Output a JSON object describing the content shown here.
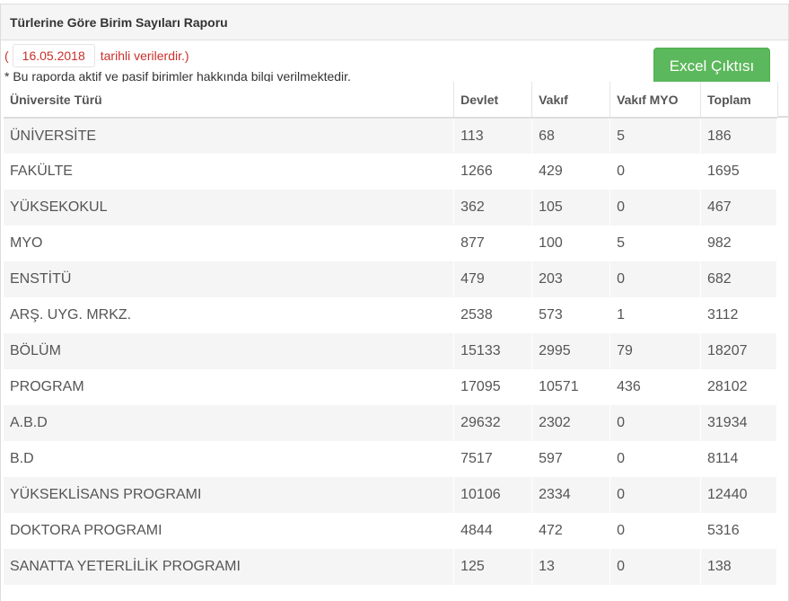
{
  "panel": {
    "title": "Türlerine Göre Birim Sayıları Raporu"
  },
  "info": {
    "open_paren": "(",
    "date": "16.05.2018",
    "date_suffix": "tarihli verilerdir.)",
    "note": "* Bu raporda aktif ve pasif birimler hakkında bilgi verilmektedir."
  },
  "toolbar": {
    "excel_label": "Excel Çıktısı"
  },
  "table": {
    "headers": [
      "Üniversite Türü",
      "Devlet",
      "Vakıf",
      "Vakıf MYO",
      "Toplam"
    ],
    "rows": [
      [
        "ÜNİVERSİTE",
        "113",
        "68",
        "5",
        "186"
      ],
      [
        "FAKÜLTE",
        "1266",
        "429",
        "0",
        "1695"
      ],
      [
        "YÜKSEKOKUL",
        "362",
        "105",
        "0",
        "467"
      ],
      [
        "MYO",
        "877",
        "100",
        "5",
        "982"
      ],
      [
        "ENSTİTÜ",
        "479",
        "203",
        "0",
        "682"
      ],
      [
        "ARŞ. UYG. MRKZ.",
        "2538",
        "573",
        "1",
        "3112"
      ],
      [
        "BÖLÜM",
        "15133",
        "2995",
        "79",
        "18207"
      ],
      [
        "PROGRAM",
        "17095",
        "10571",
        "436",
        "28102"
      ],
      [
        "A.B.D",
        "29632",
        "2302",
        "0",
        "31934"
      ],
      [
        "B.D",
        "7517",
        "597",
        "0",
        "8114"
      ],
      [
        "YÜKSEKLİSANS PROGRAMI",
        "10106",
        "2334",
        "0",
        "12440"
      ],
      [
        "DOKTORA PROGRAMI",
        "4844",
        "472",
        "0",
        "5316"
      ],
      [
        "SANATTA YETERLİLİK PROGRAMI",
        "125",
        "13",
        "0",
        "138"
      ]
    ]
  }
}
